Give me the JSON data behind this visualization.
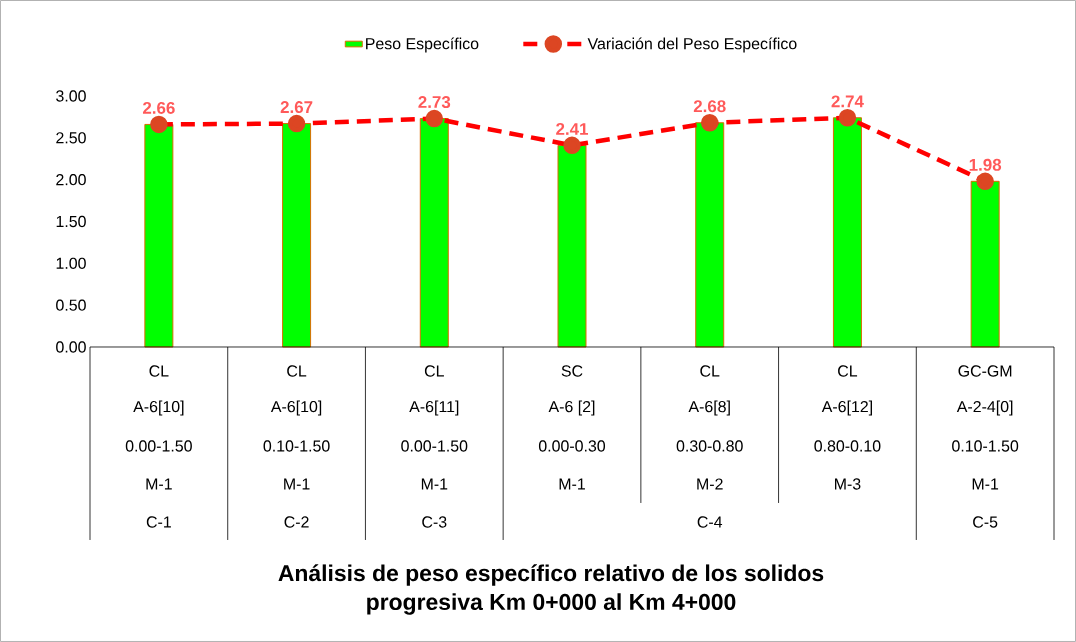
{
  "chart_data": {
    "type": "bar",
    "title": "Análisis de peso específico relativo de los solidos",
    "subtitle": "progresiva Km 0+000 al Km 4+000",
    "categories": [
      "CL",
      "CL",
      "CL",
      "SC",
      "CL",
      "CL",
      "GC-GM"
    ],
    "annotations": [
      "A-6[10]",
      "A-6[10]",
      "A-6[11]",
      "A-6 [2]",
      "A-6[8]",
      "A-6[12]",
      "A-2-4[0]",
      "0.00-1.50",
      "0.10-1.50",
      "0.00-1.50",
      "0.00-0.30",
      "0.30-0.80",
      "0.80-0.10",
      "0.10-1.50",
      "M-1",
      "M-1",
      "M-1",
      "M-1",
      "M-2",
      "M-3",
      "M-1",
      "C-1",
      "C-2",
      "C-3",
      "C-4",
      "C-5"
    ],
    "series": [
      {
        "name": "Peso Específico",
        "color": "#00ff00",
        "values": [
          2.66,
          2.67,
          2.73,
          2.41,
          2.68,
          2.74,
          1.98
        ]
      },
      {
        "name": "Variación del Peso Específico",
        "type": "line",
        "color": "#ff0000",
        "marker": "circle",
        "line_style": "dashed",
        "data_labels": true,
        "values": [
          2.66,
          2.67,
          2.73,
          2.41,
          2.68,
          2.74,
          1.98
        ]
      }
    ],
    "ylim": [
      0,
      3
    ],
    "yticks": [
      {
        "value": 0,
        "label": "0.00"
      },
      {
        "value": 0.5,
        "label": "0.50"
      },
      {
        "value": 1,
        "label": "1.00"
      },
      {
        "value": 1.5,
        "label": "1.50"
      },
      {
        "value": 2,
        "label": "2.00"
      },
      {
        "value": 2.5,
        "label": "2.50"
      },
      {
        "value": 3,
        "label": "3.00"
      }
    ],
    "grid": false,
    "legend": "top"
  }
}
